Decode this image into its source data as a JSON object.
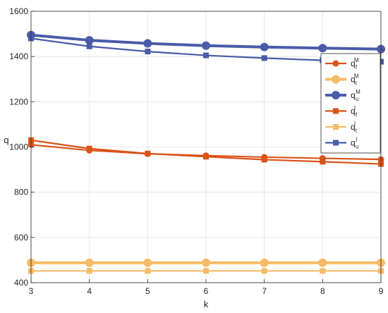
{
  "chart_data": {
    "type": "line",
    "xlabel": "k",
    "ylabel": "q",
    "xlim": [
      3,
      9
    ],
    "ylim": [
      400,
      1600
    ],
    "xticks": [
      "3",
      "4",
      "5",
      "6",
      "7",
      "8",
      "9"
    ],
    "yticks": [
      "400",
      "600",
      "800",
      "1000",
      "1200",
      "1400",
      "1600"
    ],
    "grid": true,
    "legend_position": "right",
    "x": [
      3,
      4,
      5,
      6,
      7,
      8,
      9
    ],
    "series": [
      {
        "name": "q_f^M",
        "base": "q",
        "sub": "f",
        "sup": "M",
        "color": "#d95319",
        "marker": "circle",
        "marker_size": "small",
        "values": [
          1010,
          985,
          970,
          962,
          955,
          950,
          945
        ]
      },
      {
        "name": "q_t^M",
        "base": "q",
        "sub": "t",
        "sup": "M",
        "color": "#f6bb66",
        "marker": "circle",
        "marker_size": "large",
        "values": [
          488,
          488,
          488,
          488,
          488,
          488,
          488
        ]
      },
      {
        "name": "q_u^M",
        "base": "q",
        "sub": "u",
        "sup": "M",
        "color": "#4a5ba8",
        "marker": "circle",
        "marker_size": "large",
        "values": [
          1495,
          1472,
          1458,
          1448,
          1442,
          1437,
          1433
        ]
      },
      {
        "name": "q_f^I",
        "base": "q",
        "sub": "f",
        "sup": "I",
        "color": "#d95319",
        "marker": "square",
        "marker_size": "small",
        "values": [
          1030,
          993,
          971,
          957,
          944,
          935,
          925
        ]
      },
      {
        "name": "q_t^I",
        "base": "q",
        "sub": "t",
        "sup": "I",
        "color": "#f6bb66",
        "marker": "square",
        "marker_size": "small",
        "values": [
          452,
          452,
          452,
          452,
          452,
          452,
          452
        ]
      },
      {
        "name": "q_u^I",
        "base": "q",
        "sub": "u",
        "sup": "I",
        "color": "#4a5ba8",
        "marker": "square",
        "marker_size": "small",
        "values": [
          1480,
          1445,
          1422,
          1405,
          1393,
          1383,
          1377
        ]
      }
    ]
  }
}
